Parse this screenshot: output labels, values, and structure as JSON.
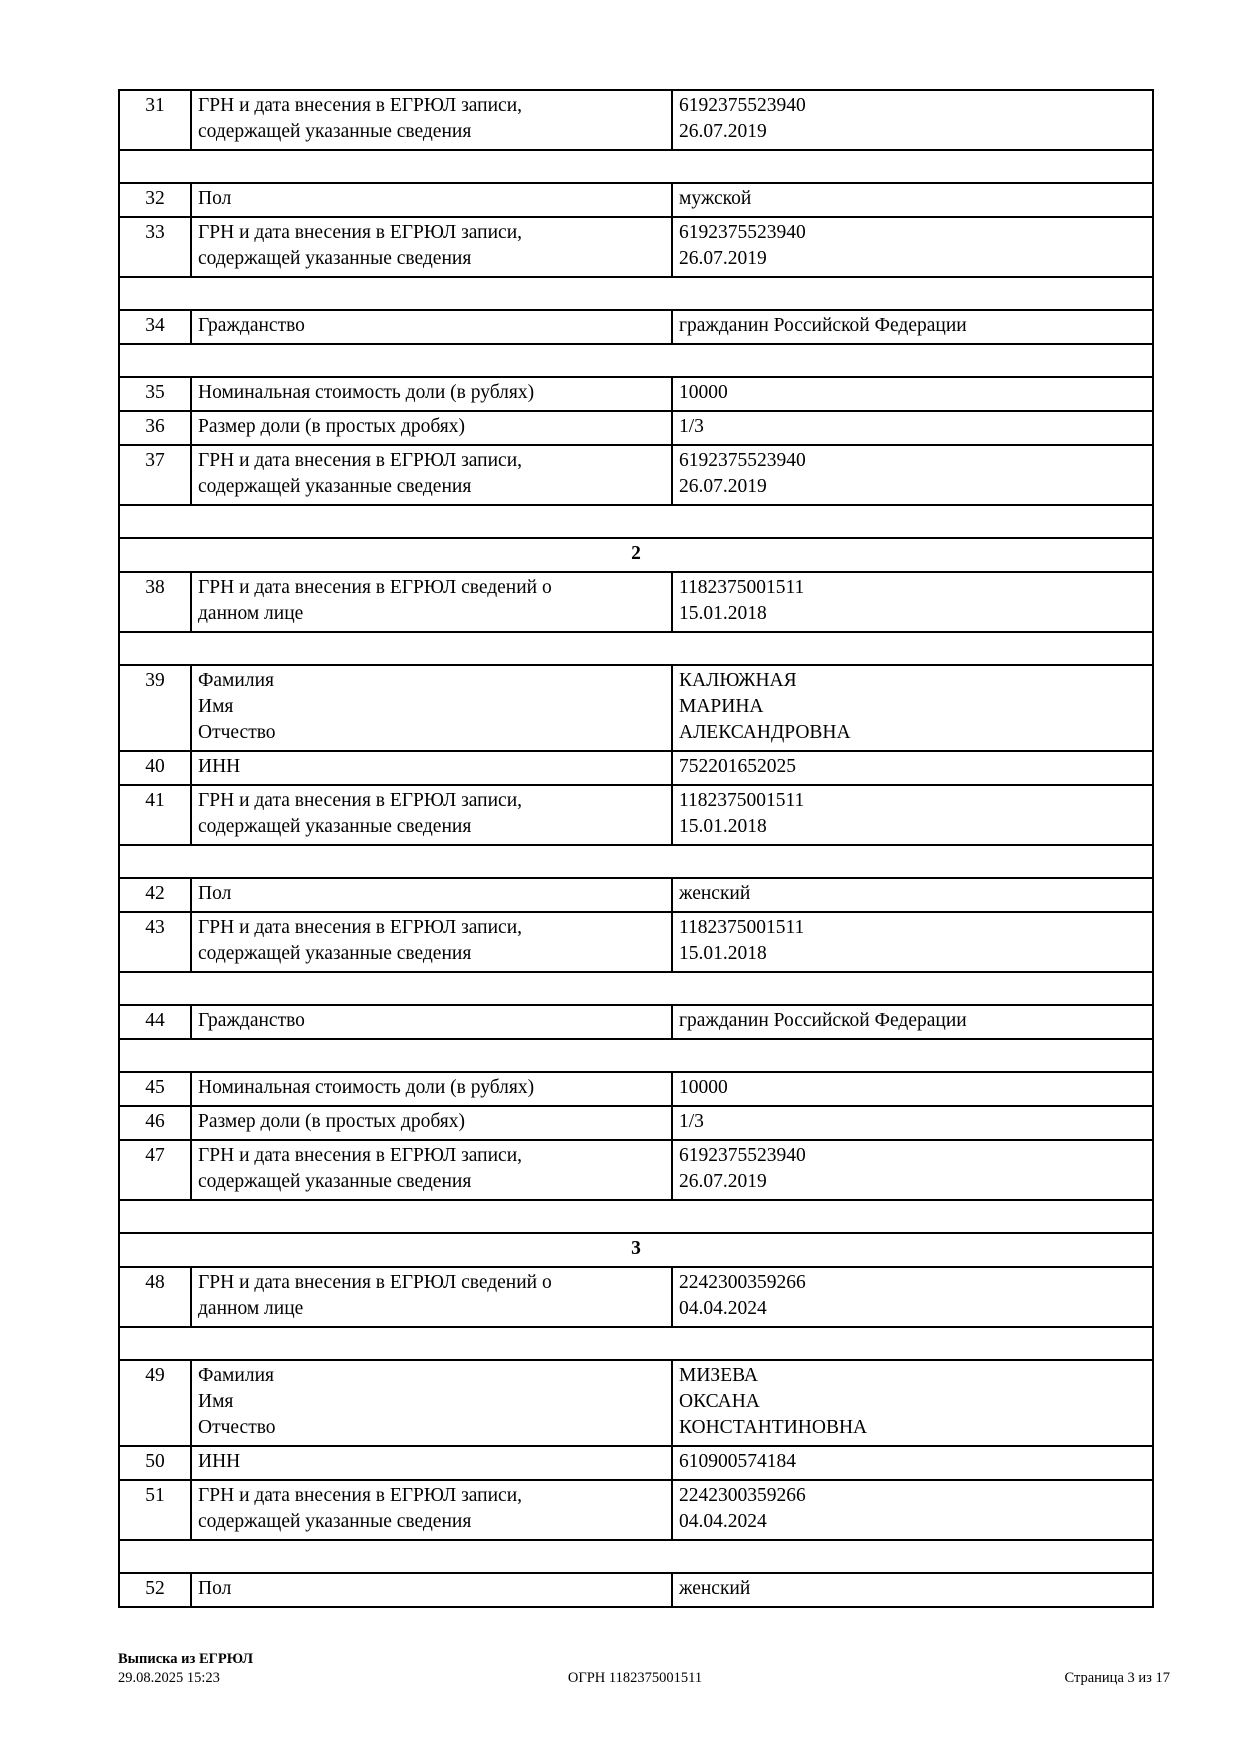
{
  "table": {
    "rows": [
      {
        "type": "data",
        "num": "31",
        "label": "ГРН и дата внесения в ЕГРЮЛ записи,\nсодержащей указанные сведения",
        "value": "6192375523940\n26.07.2019"
      },
      {
        "type": "spacer"
      },
      {
        "type": "data",
        "num": "32",
        "label": "Пол",
        "value": "мужской"
      },
      {
        "type": "data",
        "num": "33",
        "label": "ГРН и дата внесения в ЕГРЮЛ записи,\nсодержащей указанные сведения",
        "value": "6192375523940\n26.07.2019"
      },
      {
        "type": "spacer"
      },
      {
        "type": "data",
        "num": "34",
        "label": "Гражданство",
        "value": "гражданин Российской Федерации"
      },
      {
        "type": "spacer"
      },
      {
        "type": "data",
        "num": "35",
        "label": "Номинальная стоимость доли (в рублях)",
        "value": "10000"
      },
      {
        "type": "data",
        "num": "36",
        "label": "Размер доли (в простых дробях)",
        "value": "1/3"
      },
      {
        "type": "data",
        "num": "37",
        "label": "ГРН и дата внесения в ЕГРЮЛ записи,\nсодержащей указанные сведения",
        "value": "6192375523940\n26.07.2019"
      },
      {
        "type": "spacer"
      },
      {
        "type": "group",
        "label": "2"
      },
      {
        "type": "data",
        "num": "38",
        "label": "ГРН и дата внесения в ЕГРЮЛ сведений о\nданном лице",
        "value": "1182375001511\n15.01.2018"
      },
      {
        "type": "spacer"
      },
      {
        "type": "data",
        "num": "39",
        "label": "Фамилия\nИмя\nОтчество",
        "value": "КАЛЮЖНАЯ\nМАРИНА\nАЛЕКСАНДРОВНА"
      },
      {
        "type": "data",
        "num": "40",
        "label": "ИНН",
        "value": "752201652025"
      },
      {
        "type": "data",
        "num": "41",
        "label": "ГРН и дата внесения в ЕГРЮЛ записи,\nсодержащей указанные сведения",
        "value": "1182375001511\n15.01.2018"
      },
      {
        "type": "spacer"
      },
      {
        "type": "data",
        "num": "42",
        "label": "Пол",
        "value": "женский"
      },
      {
        "type": "data",
        "num": "43",
        "label": "ГРН и дата внесения в ЕГРЮЛ записи,\nсодержащей указанные сведения",
        "value": "1182375001511\n15.01.2018"
      },
      {
        "type": "spacer"
      },
      {
        "type": "data",
        "num": "44",
        "label": "Гражданство",
        "value": "гражданин Российской Федерации"
      },
      {
        "type": "spacer"
      },
      {
        "type": "data",
        "num": "45",
        "label": "Номинальная стоимость доли (в рублях)",
        "value": "10000"
      },
      {
        "type": "data",
        "num": "46",
        "label": "Размер доли (в простых дробях)",
        "value": "1/3"
      },
      {
        "type": "data",
        "num": "47",
        "label": "ГРН и дата внесения в ЕГРЮЛ записи,\nсодержащей указанные сведения",
        "value": "6192375523940\n26.07.2019"
      },
      {
        "type": "spacer"
      },
      {
        "type": "group",
        "label": "3"
      },
      {
        "type": "data",
        "num": "48",
        "label": "ГРН и дата внесения в ЕГРЮЛ сведений о\nданном лице",
        "value": "2242300359266\n04.04.2024"
      },
      {
        "type": "spacer"
      },
      {
        "type": "data",
        "num": "49",
        "label": "Фамилия\nИмя\nОтчество",
        "value": "МИЗЕВА\nОКСАНА\nКОНСТАНТИНОВНА"
      },
      {
        "type": "data",
        "num": "50",
        "label": "ИНН",
        "value": "610900574184"
      },
      {
        "type": "data",
        "num": "51",
        "label": "ГРН и дата внесения в ЕГРЮЛ записи,\nсодержащей указанные сведения",
        "value": "2242300359266\n04.04.2024"
      },
      {
        "type": "spacer"
      },
      {
        "type": "data",
        "num": "52",
        "label": "Пол",
        "value": "женский"
      }
    ]
  },
  "footer": {
    "doc_name": "Выписка из ЕГРЮЛ",
    "timestamp": "29.08.2025 15:23",
    "ogrn": "ОГРН 1182375001511",
    "page": "Страница 3 из 17"
  }
}
